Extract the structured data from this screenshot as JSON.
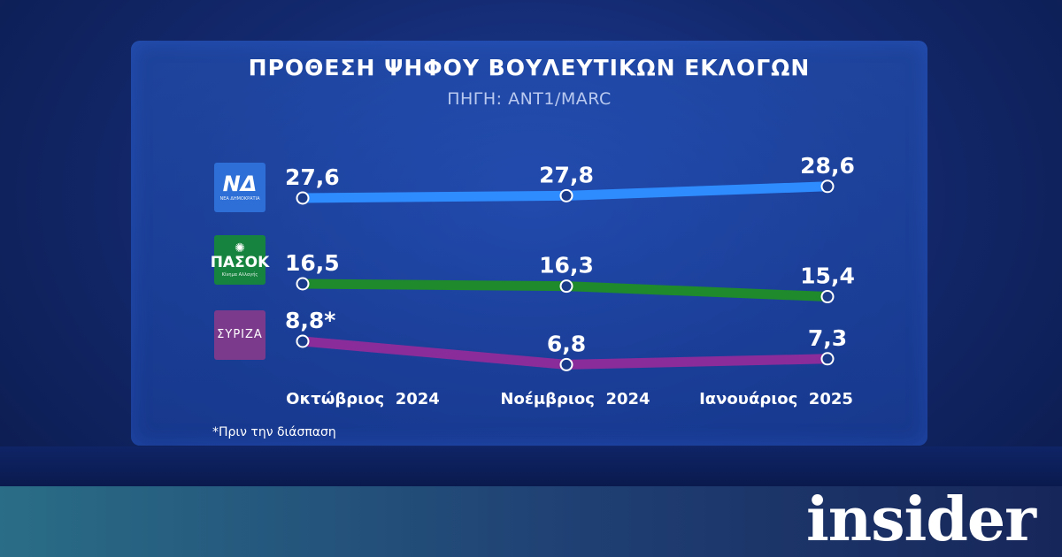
{
  "header": {
    "title": "ΠΡΟΘΕΣΗ ΨΗΦΟΥ ΒΟΥΛΕΥΤΙΚΩΝ ΕΚΛΟΓΩΝ",
    "source": "ΠΗΓΗ: ANT1/MARC"
  },
  "logos": {
    "nd": {
      "main": "ΝΔ",
      "sub": "ΝΕΑ ΔΗΜΟΚΡΑΤΙΑ"
    },
    "pasok": {
      "main": "ΠΑΣΟΚ",
      "sub": "Κίνημα Αλλαγής"
    },
    "syriza": {
      "main": "ΣΥΡΙΖΑ"
    }
  },
  "footnote": "*Πριν την διάσπαση",
  "brand": "insider",
  "chart_data": {
    "type": "line",
    "title": "ΠΡΟΘΕΣΗ ΨΗΦΟΥ ΒΟΥΛΕΥΤΙΚΩΝ ΕΚΛΟΓΩΝ",
    "categories": [
      "Οκτώβριος  2024",
      "Νοέμβριος  2024",
      "Ιανουάριος  2025"
    ],
    "series": [
      {
        "name": "ΝΔ",
        "values": [
          27.6,
          27.8,
          28.6
        ],
        "labels": [
          "27,6",
          "27,8",
          "28,6"
        ],
        "color": "#2f8cff"
      },
      {
        "name": "ΠΑΣΟΚ",
        "values": [
          16.5,
          16.3,
          15.4
        ],
        "labels": [
          "16,5",
          "16,3",
          "15,4"
        ],
        "color": "#1e8a2c"
      },
      {
        "name": "ΣΥΡΙΖΑ",
        "values": [
          8.8,
          6.8,
          7.3
        ],
        "labels": [
          "8,8*",
          "6,8",
          "7,3"
        ],
        "color": "#8a2d9a"
      }
    ],
    "legend": "logos-left",
    "grid": false
  }
}
